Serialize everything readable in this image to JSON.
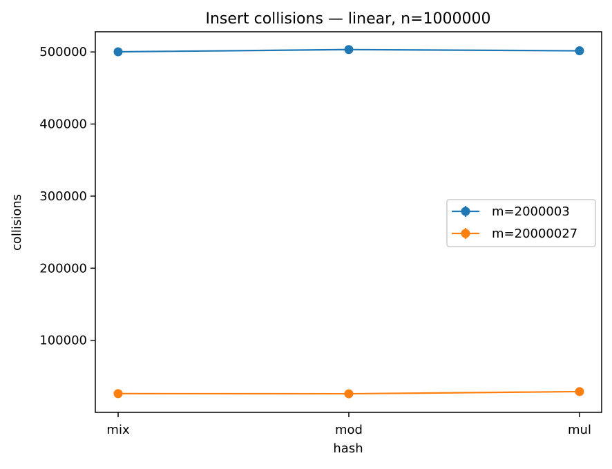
{
  "chart_data": {
    "type": "line",
    "title": "Insert collisions — linear, n=1000000",
    "xlabel": "hash",
    "ylabel": "collisions",
    "categories": [
      "mix",
      "mod",
      "mul"
    ],
    "ylim": [
      0,
      528000
    ],
    "yticks": [
      100000,
      200000,
      300000,
      400000,
      500000
    ],
    "grid": false,
    "legend_position": "center-right",
    "series": [
      {
        "name": "m=2000003",
        "color": "#1f77b4",
        "values": [
          500200,
          503300,
          501600
        ]
      },
      {
        "name": "m=20000027",
        "color": "#ff7f0e",
        "values": [
          26000,
          25800,
          28800
        ]
      }
    ]
  }
}
